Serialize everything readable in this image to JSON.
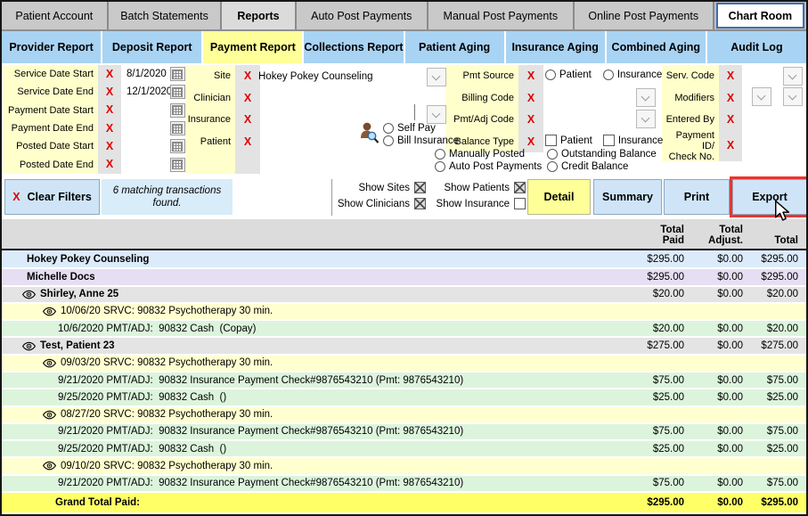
{
  "colors": {
    "accent_yellow": "#ffff99",
    "tab_blue": "#a9d3f3",
    "filter_label_bg": "#ffffcc",
    "red_x": "#dd0000",
    "button_blue": "#cfe5f7",
    "export_highlight": "#e8352e",
    "row_site": "#dcebfa",
    "row_clinician": "#e6dff3",
    "row_patient": "#e4e4e4",
    "row_service": "#ffffd0",
    "row_payment": "#dcf4dc",
    "row_grand_total": "#ffff66"
  },
  "icons": {
    "red_x": "X"
  },
  "top_tabs": [
    {
      "label": "Patient Account",
      "active": false
    },
    {
      "label": "Batch Statements",
      "active": false
    },
    {
      "label": "Reports",
      "active": true
    },
    {
      "label": "Auto Post Payments",
      "active": false
    },
    {
      "label": "Manual Post Payments",
      "active": false
    },
    {
      "label": "Online Post Payments",
      "active": false
    },
    {
      "label": "Chart Room",
      "active": false,
      "style": "button"
    }
  ],
  "report_tabs": [
    {
      "label": "Provider Report",
      "active": false
    },
    {
      "label": "Deposit Report",
      "active": false
    },
    {
      "label": "Payment Report",
      "active": true
    },
    {
      "label": "Collections Report",
      "active": false
    },
    {
      "label": "Patient Aging",
      "active": false
    },
    {
      "label": "Insurance Aging",
      "active": false
    },
    {
      "label": "Combined Aging",
      "active": false
    },
    {
      "label": "Audit Log",
      "active": false
    }
  ],
  "filters": {
    "dates": [
      {
        "label": "Service Date Start",
        "value": "8/1/2020"
      },
      {
        "label": "Service Date End",
        "value": "12/1/2020"
      },
      {
        "label": "Payment Date Start",
        "value": ""
      },
      {
        "label": "Payment Date End",
        "value": ""
      },
      {
        "label": "Posted Date Start",
        "value": ""
      },
      {
        "label": "Posted Date End",
        "value": ""
      }
    ],
    "entities": [
      {
        "label": "Site",
        "value": "Hokey Pokey Counseling"
      },
      {
        "label": "Clinician",
        "value": ""
      },
      {
        "label": "Insurance",
        "value": ""
      },
      {
        "label": "Patient",
        "value": ""
      }
    ],
    "pay_type_radios": [
      {
        "label": "Self Pay",
        "selected": false
      },
      {
        "label": "Bill Insurance",
        "selected": false
      }
    ],
    "posting_radios": [
      {
        "label": "Manually Posted",
        "selected": false
      },
      {
        "label": "Auto Post Payments",
        "selected": false
      }
    ],
    "codes": [
      {
        "label": "Pmt Source"
      },
      {
        "label": "Billing Code"
      },
      {
        "label": "Pmt/Adj Code"
      },
      {
        "label": "Balance Type"
      }
    ],
    "pmt_source_options": [
      {
        "label": "Patient",
        "selected": false
      },
      {
        "label": "Insurance",
        "selected": false
      }
    ],
    "balance_type_options": [
      {
        "label": "Patient",
        "checked": false
      },
      {
        "label": "Insurance",
        "checked": false
      }
    ],
    "balance_radios": [
      {
        "label": "Outstanding Balance",
        "selected": false
      },
      {
        "label": "Credit Balance",
        "selected": false
      }
    ],
    "rights": [
      {
        "label": "Serv. Code"
      },
      {
        "label": "Modifiers"
      },
      {
        "label": "Entered By"
      },
      {
        "label": "Payment ID/\nCheck No."
      }
    ]
  },
  "toolbar": {
    "clear_filters_label": "Clear Filters",
    "status": "6 matching transactions found.",
    "toggles": [
      {
        "label": "Show Sites",
        "checked": true
      },
      {
        "label": "Show Patients",
        "checked": true
      },
      {
        "label": "Show Clinicians",
        "checked": true
      },
      {
        "label": "Show Insurance",
        "checked": false
      }
    ],
    "buttons": [
      {
        "label": "Detail",
        "style": "yellow",
        "highlighted": false
      },
      {
        "label": "Summary",
        "style": "blue",
        "highlighted": false
      },
      {
        "label": "Print",
        "style": "blue",
        "highlighted": false
      },
      {
        "label": "Export",
        "style": "blue",
        "highlighted": true
      }
    ]
  },
  "table": {
    "columns": [
      "Total\nPaid",
      "Total\nAdjust.",
      "Total"
    ],
    "rows": [
      {
        "type": "site",
        "eye": false,
        "label": "Hokey Pokey Counseling",
        "paid": "$295.00",
        "adjust": "$0.00",
        "total": "$295.00"
      },
      {
        "type": "clinician",
        "eye": false,
        "label": "Michelle Docs",
        "paid": "$295.00",
        "adjust": "$0.00",
        "total": "$295.00"
      },
      {
        "type": "patient",
        "eye": true,
        "label": "Shirley, Anne 25",
        "paid": "$20.00",
        "adjust": "$0.00",
        "total": "$20.00"
      },
      {
        "type": "service",
        "eye": true,
        "label": "10/06/20 SRVC: 90832 Psychotherapy 30 min.",
        "paid": "",
        "adjust": "",
        "total": ""
      },
      {
        "type": "payment",
        "eye": false,
        "label": "10/6/2020 PMT/ADJ:  90832 Cash  (Copay)",
        "paid": "$20.00",
        "adjust": "$0.00",
        "total": "$20.00"
      },
      {
        "type": "patient",
        "eye": true,
        "label": "Test, Patient 23",
        "paid": "$275.00",
        "adjust": "$0.00",
        "total": "$275.00"
      },
      {
        "type": "service",
        "eye": true,
        "label": "09/03/20 SRVC: 90832 Psychotherapy 30 min.",
        "paid": "",
        "adjust": "",
        "total": ""
      },
      {
        "type": "payment",
        "eye": false,
        "label": "9/21/2020 PMT/ADJ:  90832 Insurance Payment Check#9876543210 (Pmt: 9876543210)",
        "paid": "$75.00",
        "adjust": "$0.00",
        "total": "$75.00"
      },
      {
        "type": "payment",
        "eye": false,
        "label": "9/25/2020 PMT/ADJ:  90832 Cash  ()",
        "paid": "$25.00",
        "adjust": "$0.00",
        "total": "$25.00"
      },
      {
        "type": "service",
        "eye": true,
        "label": "08/27/20 SRVC: 90832 Psychotherapy 30 min.",
        "paid": "",
        "adjust": "",
        "total": ""
      },
      {
        "type": "payment",
        "eye": false,
        "label": "9/21/2020 PMT/ADJ:  90832 Insurance Payment Check#9876543210 (Pmt: 9876543210)",
        "paid": "$75.00",
        "adjust": "$0.00",
        "total": "$75.00"
      },
      {
        "type": "payment",
        "eye": false,
        "label": "9/25/2020 PMT/ADJ:  90832 Cash  ()",
        "paid": "$25.00",
        "adjust": "$0.00",
        "total": "$25.00"
      },
      {
        "type": "service",
        "eye": true,
        "label": "09/10/20 SRVC: 90832 Psychotherapy 30 min.",
        "paid": "",
        "adjust": "",
        "total": ""
      },
      {
        "type": "payment",
        "eye": false,
        "label": "9/21/2020 PMT/ADJ:  90832 Insurance Payment Check#9876543210 (Pmt: 9876543210)",
        "paid": "$75.00",
        "adjust": "$0.00",
        "total": "$75.00"
      },
      {
        "type": "grand_total",
        "eye": false,
        "label": "Grand Total Paid:",
        "paid": "$295.00",
        "adjust": "$0.00",
        "total": "$295.00"
      }
    ]
  }
}
